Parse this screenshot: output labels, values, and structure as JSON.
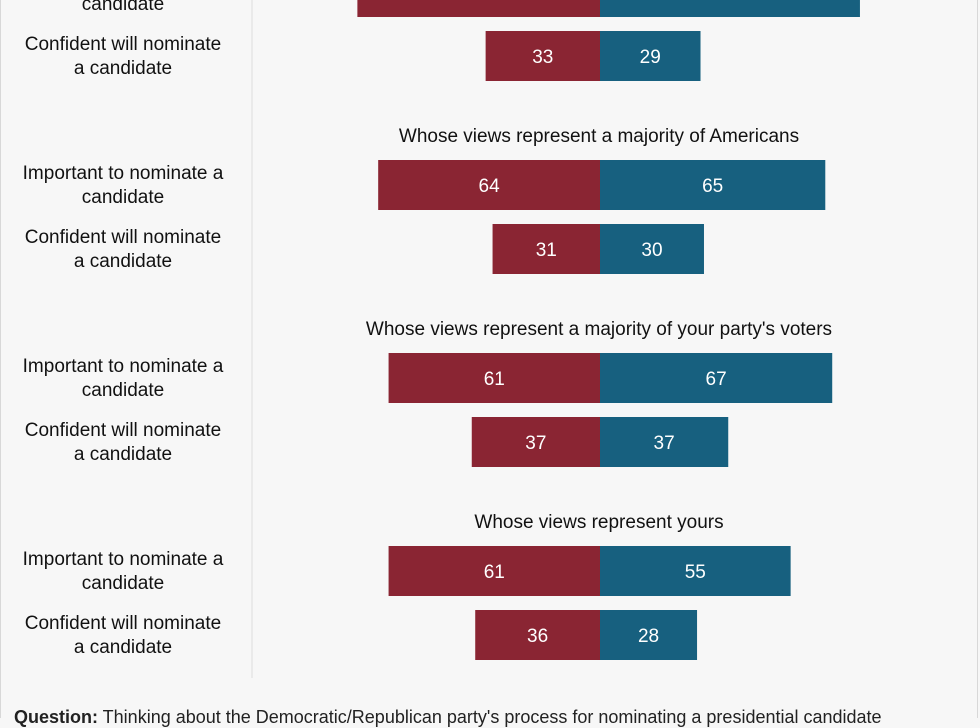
{
  "chart_data": {
    "type": "bar",
    "orientation": "horizontal-diverging",
    "series": [
      {
        "color": "#8a2533"
      },
      {
        "color": "#17607f"
      }
    ],
    "groups": [
      {
        "title": "",
        "rows": [
          {
            "label_line1": "",
            "label_line2": "candidate",
            "left": 70,
            "right": 75
          },
          {
            "label_line1": "Confident will nominate",
            "label_line2": "a candidate",
            "left": 33,
            "right": 29
          }
        ]
      },
      {
        "title": "Whose views represent a majority of Americans",
        "rows": [
          {
            "label_line1": "Important to nominate a",
            "label_line2": "candidate",
            "left": 64,
            "right": 65
          },
          {
            "label_line1": "Confident will nominate",
            "label_line2": "a candidate",
            "left": 31,
            "right": 30
          }
        ]
      },
      {
        "title": "Whose views represent a majority of your party's voters",
        "rows": [
          {
            "label_line1": "Important to nominate a",
            "label_line2": "candidate",
            "left": 61,
            "right": 67
          },
          {
            "label_line1": "Confident will nominate",
            "label_line2": "a candidate",
            "left": 37,
            "right": 37
          }
        ]
      },
      {
        "title": "Whose views represent yours",
        "rows": [
          {
            "label_line1": "Important to nominate a",
            "label_line2": "candidate",
            "left": 61,
            "right": 55
          },
          {
            "label_line1": "Confident will nominate",
            "label_line2": "a candidate",
            "left": 36,
            "right": 28
          }
        ]
      }
    ]
  },
  "footnote": {
    "bold": "Question:",
    "text": " Thinking about the Democratic/Republican party's process for nominating a presidential candidate"
  }
}
